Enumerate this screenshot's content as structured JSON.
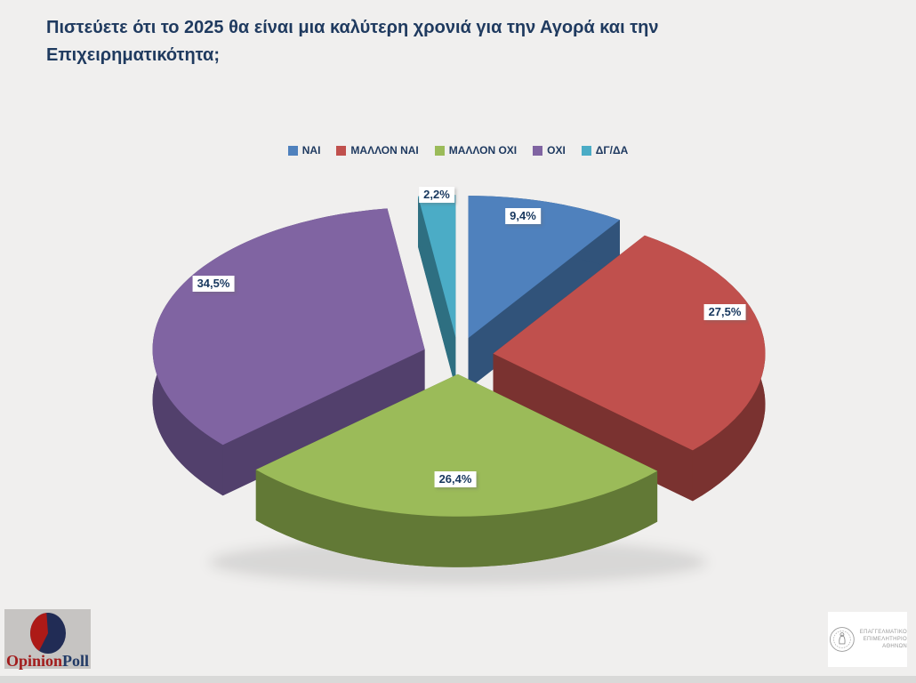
{
  "title": "Πιστεύετε ότι το 2025 θα είναι μια καλύτερη χρονιά για την Αγορά και την Επιχειρηματικότητα;",
  "chart_data": {
    "type": "pie",
    "style": "3d-exploded",
    "title": "Πιστεύετε ότι το 2025 θα είναι μια καλύτερη χρονιά για την Αγορά και την Επιχειρηματικότητα;",
    "categories": [
      "ΝΑΙ",
      "ΜΑΛΛΟΝ ΝΑΙ",
      "ΜΑΛΛΟΝ ΟΧΙ",
      "ΟΧΙ",
      "ΔΓ/ΔΑ"
    ],
    "values": [
      9.4,
      27.5,
      26.4,
      34.5,
      2.2
    ],
    "value_labels": [
      "9,4%",
      "27,5%",
      "26,4%",
      "34,5%",
      "2,2%"
    ],
    "colors": [
      "#4F81BD",
      "#C0504D",
      "#9BBB59",
      "#8064A2",
      "#4BACC6"
    ],
    "side_colors": [
      "#31537A",
      "#7A3230",
      "#627936",
      "#52406C",
      "#2E6F81"
    ],
    "legend_position": "top",
    "start_angle": 0,
    "direction": "clockwise",
    "label_color": "#17375E",
    "label_background": "#FFFFFF",
    "legend_text_color": "#1F3A60"
  },
  "footer": {
    "left_logo": {
      "brand_first": "Opinion",
      "brand_second": "Poll"
    },
    "right_logo": {
      "lines": [
        "ΕΠΑΓΓΕΛΜΑΤΙΚΟ",
        "ΕΠΙΜΕΛΗΤΗΡΙΟ",
        "ΑΘΗΝΩΝ"
      ]
    }
  }
}
